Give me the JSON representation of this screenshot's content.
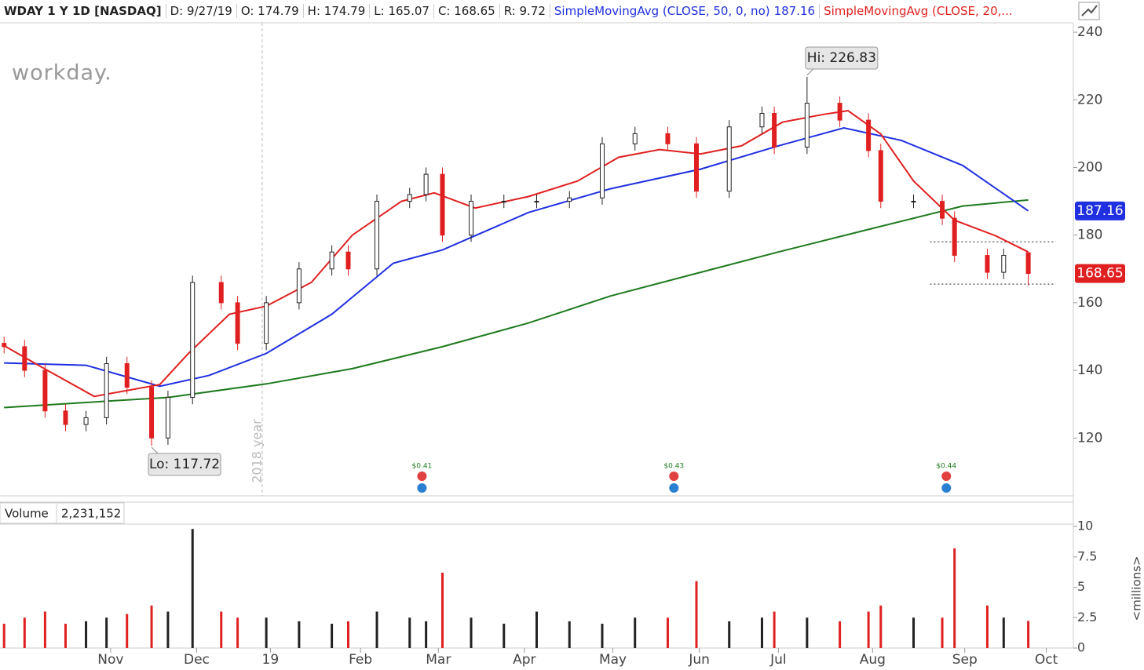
{
  "header": {
    "symbol": "WDAY 1 Y 1D [NASDAQ]",
    "fields": [
      "D: 9/27/19",
      "O: 174.79",
      "H: 174.79",
      "L: 165.07",
      "C: 168.65",
      "R: 9.72"
    ],
    "logo": "workday.",
    "volume_title": "Volume",
    "volume_value": "2,231,152"
  },
  "chart_data": [
    {
      "type": "candlestick",
      "x": [
        0,
        5,
        10,
        15,
        20,
        25,
        30,
        36,
        40,
        46,
        53,
        57,
        64,
        72,
        80,
        84,
        91,
        99,
        103,
        107,
        114,
        122,
        130,
        138,
        146,
        154,
        162,
        169,
        177,
        185,
        188,
        196,
        204,
        211,
        214,
        222,
        229,
        232,
        240,
        244,
        250
      ],
      "open": [
        148,
        147,
        140,
        128,
        124,
        126,
        142,
        135,
        120,
        132,
        166,
        160,
        148,
        160,
        170,
        175,
        170,
        190,
        192,
        198,
        180,
        190,
        190,
        190,
        191,
        207,
        210,
        207,
        193,
        212,
        216,
        206,
        219,
        214,
        205,
        190,
        190,
        185,
        174,
        169,
        174.79
      ],
      "high": [
        150,
        149,
        142,
        130,
        128,
        144,
        144,
        137,
        134,
        168,
        168,
        162,
        162,
        172,
        177,
        177,
        192,
        194,
        200,
        200,
        192,
        192,
        192,
        193,
        209,
        212,
        212,
        209,
        214,
        218,
        218,
        226.83,
        221,
        216,
        207,
        192,
        192,
        187,
        176,
        176,
        174.79
      ],
      "low": [
        145,
        138,
        126,
        122,
        122,
        124,
        133,
        117.72,
        118,
        130,
        158,
        146,
        146,
        158,
        168,
        168,
        168,
        188,
        190,
        178,
        178,
        188,
        188,
        188,
        189,
        205,
        205,
        191,
        191,
        210,
        204,
        204,
        212,
        203,
        188,
        188,
        183,
        172,
        167,
        167,
        165.07
      ],
      "close": [
        147,
        140,
        128,
        124,
        126,
        142,
        135,
        120,
        132,
        166,
        160,
        148,
        160,
        170,
        175,
        170,
        190,
        192,
        198,
        180,
        190,
        190,
        190,
        191,
        207,
        210,
        207,
        193,
        212,
        216,
        206,
        219,
        214,
        205,
        190,
        190,
        185,
        174,
        169,
        174,
        168.65
      ],
      "up_color": "#222222",
      "down_color": "#e02020",
      "series": [
        {
          "color": "#1e7a1e",
          "x": [
            0,
            20,
            40,
            64,
            85,
            107,
            128,
            148,
            170,
            189,
            212,
            234,
            250
          ],
          "values": [
            129,
            130.5,
            132,
            136,
            140.5,
            147,
            154,
            162,
            169,
            175,
            182,
            188.6,
            190.4
          ]
        },
        {
          "name": "SimpleMovingAvg (CLOSE, 50, 0, no)",
          "current": 187.16,
          "color": "#2030e0",
          "x": [
            0,
            20,
            38,
            50,
            64,
            80,
            95,
            107,
            128,
            148,
            170,
            189,
            205,
            219,
            234,
            250
          ],
          "values": [
            142.2,
            141.5,
            135.3,
            138.5,
            145,
            156.6,
            171.7,
            175.6,
            186.7,
            193.7,
            199.5,
            206.4,
            211.7,
            208,
            200.6,
            187.16
          ]
        },
        {
          "name": "SimpleMovingAvg (CLOSE, 20,...",
          "color": "#e02020",
          "x": [
            0,
            10,
            22,
            38,
            45,
            55,
            64,
            75,
            85,
            97,
            105,
            115,
            128,
            140,
            150,
            160,
            170,
            180,
            190,
            200,
            206,
            214,
            222,
            232,
            242,
            250
          ],
          "values": [
            147.3,
            140.4,
            132.3,
            135.8,
            145,
            156.6,
            159,
            166,
            180,
            190,
            192.5,
            188,
            191.4,
            196,
            203,
            205.3,
            204,
            206.4,
            213.4,
            215.7,
            216.8,
            209.9,
            196,
            184.4,
            179.8,
            175
          ]
        }
      ],
      "hi_label": "Hi: 226.83",
      "lo_label": "Lo: 117.72",
      "support_lines": [
        178,
        165.5
      ],
      "dividends": [
        {
          "x": 102,
          "label": "$0.41"
        },
        {
          "x": 163.5,
          "label": "$0.43"
        },
        {
          "x": 230,
          "label": "$0.44"
        }
      ],
      "year_marker": {
        "x": 63,
        "label": "2018 year"
      },
      "xlim": [
        -1,
        261
      ],
      "ylim": [
        102.9,
        242.8
      ],
      "yticks": [
        120,
        140,
        160,
        180,
        200,
        220,
        240
      ],
      "xticks": [
        {
          "value": 26,
          "label": "Nov"
        },
        {
          "value": 47,
          "label": "Dec"
        },
        {
          "value": 65,
          "label": "19"
        },
        {
          "value": 87,
          "label": "Feb"
        },
        {
          "value": 106,
          "label": "Mar"
        },
        {
          "value": 127,
          "label": "Apr"
        },
        {
          "value": 148.6,
          "label": "May"
        },
        {
          "value": 169.7,
          "label": "Jun"
        },
        {
          "value": 189,
          "label": "Jul"
        },
        {
          "value": 212,
          "label": "Aug"
        },
        {
          "value": 234.5,
          "label": "Sep"
        },
        {
          "value": 254.4,
          "label": "Oct"
        }
      ]
    },
    {
      "type": "bar",
      "y_label": "<millions>",
      "x": [
        0,
        5,
        10,
        15,
        20,
        25,
        30,
        36,
        40,
        46,
        53,
        57,
        64,
        72,
        80,
        84,
        91,
        99,
        103,
        107,
        114,
        122,
        130,
        138,
        146,
        154,
        162,
        169,
        177,
        185,
        188,
        196,
        204,
        211,
        214,
        222,
        229,
        232,
        240,
        244,
        250
      ],
      "values": [
        2,
        2.5,
        3,
        2,
        2.2,
        2.5,
        2.8,
        3.5,
        3,
        9.8,
        3,
        2.5,
        2.5,
        2.2,
        2,
        2.2,
        3,
        2.5,
        2.2,
        6.2,
        2.5,
        2,
        3,
        2.2,
        2,
        2.5,
        2.5,
        5.5,
        2.2,
        2.5,
        3,
        2.5,
        2.2,
        3,
        3.5,
        2.5,
        2.5,
        8.2,
        3.5,
        2.5,
        2.231152
      ],
      "xlim": [
        -1,
        261
      ],
      "ylim": [
        0,
        10.2
      ],
      "yticks": [
        0,
        2.5,
        5,
        7.5,
        10
      ]
    }
  ]
}
